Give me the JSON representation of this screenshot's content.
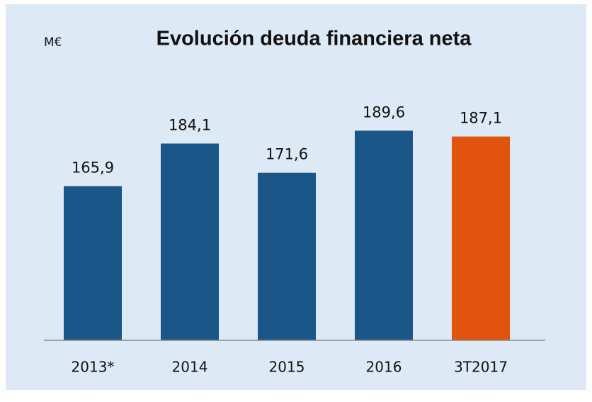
{
  "chart_data": {
    "type": "bar",
    "title": "Evolución deuda financiera neta",
    "unit": "M€",
    "categories": [
      "2013*",
      "2014",
      "2015",
      "2016",
      "3T2017"
    ],
    "values": [
      165.9,
      184.1,
      171.6,
      189.6,
      187.1
    ],
    "value_labels": [
      "165,9",
      "184,1",
      "171,6",
      "189,6",
      "187,1"
    ],
    "colors": [
      "#1a5687",
      "#1a5687",
      "#1a5687",
      "#1a5687",
      "#e0540e"
    ],
    "ylim": [
      100,
      200
    ]
  }
}
